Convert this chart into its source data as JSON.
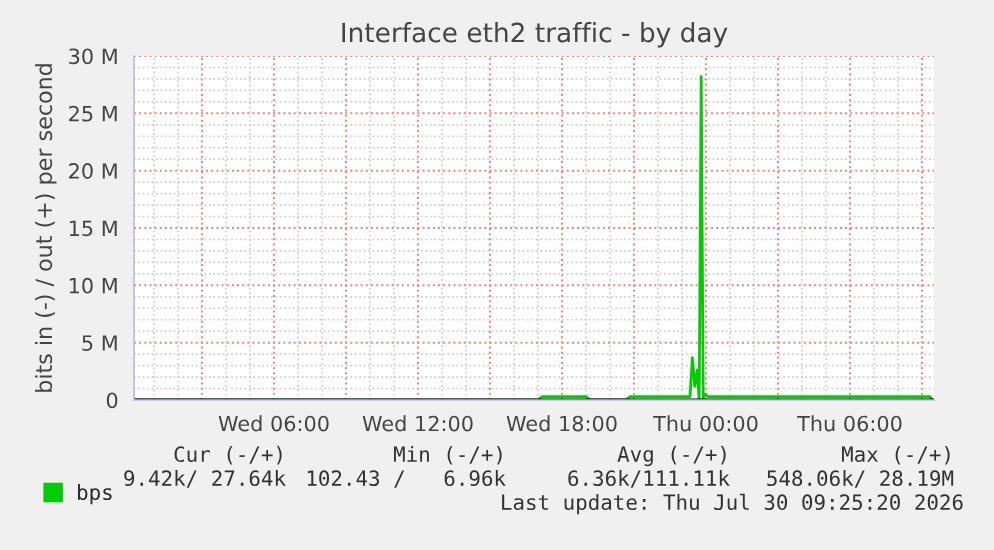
{
  "chart_data": {
    "type": "line",
    "title": "Interface eth2 traffic - by day",
    "ylabel": "bits in (-) / out (+) per second",
    "xlim": [
      "2026-07-29T00:10",
      "2026-07-30T09:30"
    ],
    "xticks": [
      {
        "value": "2026-07-29T03:00",
        "label": null
      },
      {
        "value": "2026-07-29T06:00",
        "label": "Wed 06:00"
      },
      {
        "value": "2026-07-29T09:00",
        "label": null
      },
      {
        "value": "2026-07-29T12:00",
        "label": "Wed 12:00"
      },
      {
        "value": "2026-07-29T15:00",
        "label": null
      },
      {
        "value": "2026-07-29T18:00",
        "label": "Wed 18:00"
      },
      {
        "value": "2026-07-29T21:00",
        "label": null
      },
      {
        "value": "2026-07-30T00:00",
        "label": "Thu 00:00"
      },
      {
        "value": "2026-07-30T03:00",
        "label": null
      },
      {
        "value": "2026-07-30T06:00",
        "label": "Thu 06:00"
      },
      {
        "value": "2026-07-30T09:00",
        "label": null
      }
    ],
    "ylim": [
      0,
      30
    ],
    "yticks": [
      0,
      {
        "value": 5,
        "label": "5 M"
      },
      {
        "value": 10,
        "label": "10 M"
      },
      {
        "value": 15,
        "label": "15 M"
      },
      {
        "value": 20,
        "label": "20 M"
      },
      {
        "value": 25,
        "label": "25 M"
      },
      {
        "value": 30,
        "label": "30 M"
      }
    ],
    "grid": true,
    "legend": "bottom left",
    "series": [
      {
        "name": "bps",
        "color": "#00cc00",
        "x": [
          "2026-07-29T00:10",
          "2026-07-29T17:00",
          "2026-07-29T17:10",
          "2026-07-29T19:00",
          "2026-07-29T19:10",
          "2026-07-29T20:40",
          "2026-07-29T20:50",
          "2026-07-29T23:20",
          "2026-07-29T23:26",
          "2026-07-29T23:32",
          "2026-07-29T23:38",
          "2026-07-29T23:43",
          "2026-07-29T23:48",
          "2026-07-29T23:53",
          "2026-07-29T23:58",
          "2026-07-30T00:05",
          "2026-07-30T09:20",
          "2026-07-30T09:25"
        ],
        "values": [
          0,
          0,
          0.3,
          0.3,
          0,
          0,
          0.3,
          0.3,
          3.7,
          1.2,
          2.6,
          0,
          28.19,
          0.2,
          0.5,
          0.3,
          0.3,
          0
        ]
      }
    ],
    "annotations": [
      "Cur (-/+)",
      "Min (-/+)",
      "Avg (-/+)",
      "Max (-/+)",
      "9.42k/ 27.64k",
      "102.43 /   6.96k",
      "6.36k/111.11k",
      "548.06k/ 28.19M",
      "Last update: Thu Jul 30 09:25:20 2026"
    ]
  }
}
